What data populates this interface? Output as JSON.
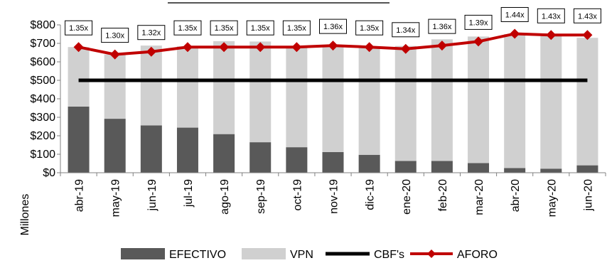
{
  "chart_data": {
    "type": "bar",
    "stacked": true,
    "categories": [
      "abr-19",
      "may-19",
      "jun-19",
      "jul-19",
      "ago-19",
      "sep-19",
      "oct-19",
      "nov-19",
      "dic-19",
      "ene-20",
      "feb-20",
      "mar-20",
      "abr-20",
      "may-20",
      "jun-20"
    ],
    "series": [
      {
        "name": "EFECTIVO",
        "type": "bar",
        "color": "#595959",
        "values": [
          358,
          292,
          256,
          244,
          209,
          165,
          138,
          112,
          97,
          64,
          64,
          52,
          25,
          22,
          40
        ]
      },
      {
        "name": "VPN",
        "type": "bar",
        "color": "#d0d0d0",
        "values": [
          322,
          348,
          432,
          440,
          503,
          545,
          546,
          573,
          583,
          622,
          658,
          685,
          725,
          720,
          690
        ]
      },
      {
        "name": "CBF's",
        "type": "line",
        "color": "#000000",
        "values": [
          500,
          500,
          500,
          500,
          500,
          500,
          500,
          500,
          500,
          500,
          500,
          500,
          500,
          500,
          500
        ]
      },
      {
        "name": "AFORO",
        "type": "line",
        "color": "#c00000",
        "values": [
          680,
          640,
          655,
          680,
          680,
          680,
          680,
          688,
          680,
          670,
          688,
          710,
          752,
          745,
          745
        ]
      }
    ],
    "aforo_labels": [
      "1.35x",
      "1.30x",
      "1.32x",
      "1.35x",
      "1.35x",
      "1.35x",
      "1.35x",
      "1.36x",
      "1.35x",
      "1.34x",
      "1.36x",
      "1.39x",
      "1.44x",
      "1.43x",
      "1.43x"
    ],
    "yticks": [
      "$0",
      "$100",
      "$200",
      "$300",
      "$400",
      "$500",
      "$600",
      "$700",
      "$800"
    ],
    "ylim": [
      0,
      800
    ],
    "ylabel": "Millones",
    "legend_position": "bottom",
    "grid": false
  }
}
